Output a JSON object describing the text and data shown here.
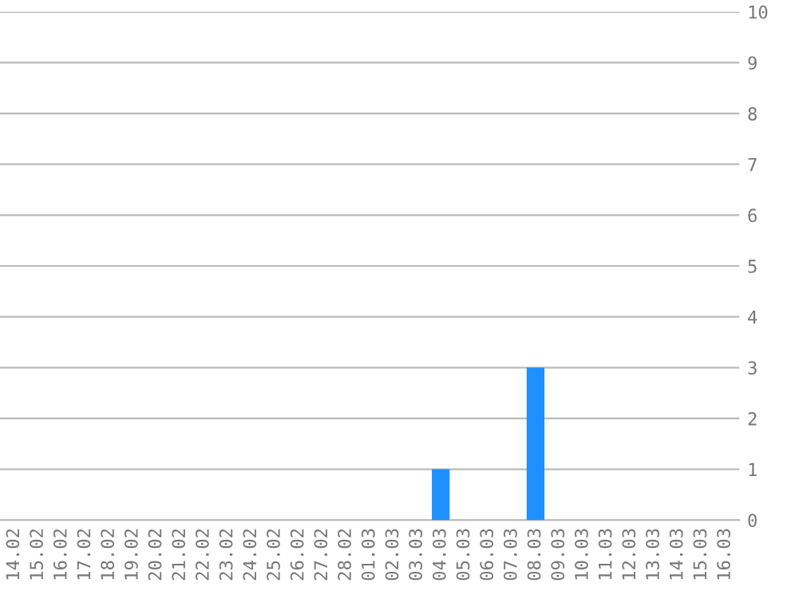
{
  "chart_data": {
    "type": "bar",
    "categories": [
      "14.02",
      "15.02",
      "16.02",
      "17.02",
      "18.02",
      "19.02",
      "20.02",
      "21.02",
      "22.02",
      "23.02",
      "24.02",
      "25.02",
      "26.02",
      "27.02",
      "28.02",
      "01.03",
      "02.03",
      "03.03",
      "04.03",
      "05.03",
      "06.03",
      "07.03",
      "08.03",
      "09.03",
      "10.03",
      "11.03",
      "12.03",
      "13.03",
      "14.03",
      "15.03",
      "16.03"
    ],
    "values": [
      0,
      0,
      0,
      0,
      0,
      0,
      0,
      0,
      0,
      0,
      0,
      0,
      0,
      0,
      0,
      0,
      0,
      0,
      1,
      0,
      0,
      0,
      3,
      0,
      0,
      0,
      0,
      0,
      0,
      0,
      0
    ],
    "color": "#1e90ff",
    "ylim": [
      0,
      10
    ],
    "yticks": [
      0,
      1,
      2,
      3,
      4,
      5,
      6,
      7,
      8,
      9,
      10
    ],
    "grid": "y"
  }
}
